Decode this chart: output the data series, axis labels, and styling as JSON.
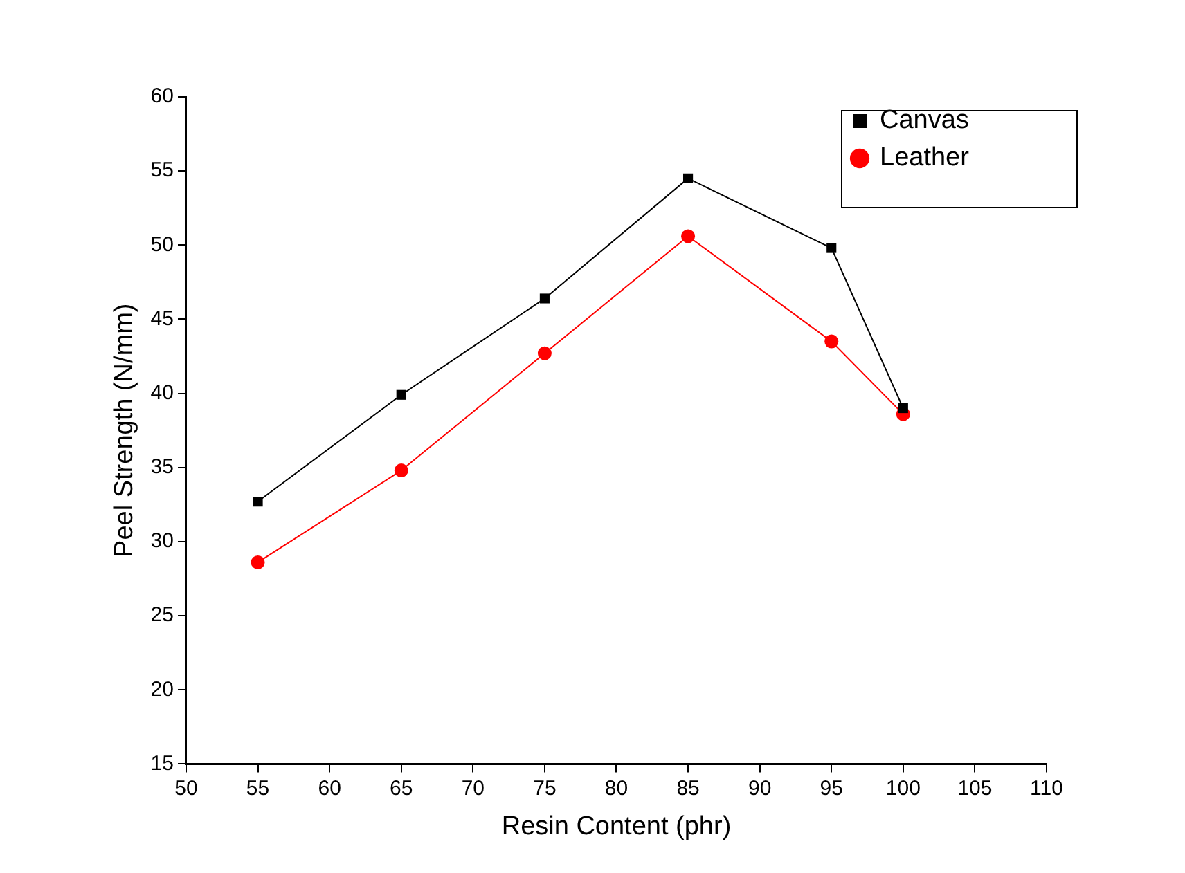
{
  "chart_data": {
    "type": "line",
    "xlabel": "Resin Content (phr)",
    "ylabel": "Peel Strength (N/mm)",
    "x": [
      55,
      65,
      75,
      85,
      95,
      100
    ],
    "series": [
      {
        "name": "Canvas",
        "color": "#000000",
        "marker": "square",
        "values": [
          32.7,
          39.9,
          46.4,
          54.5,
          49.8,
          39.0
        ]
      },
      {
        "name": "Leather",
        "color": "#ff0000",
        "marker": "circle",
        "values": [
          28.6,
          34.8,
          42.7,
          50.6,
          43.5,
          38.6
        ]
      }
    ],
    "xlim": [
      50,
      110
    ],
    "xticks": [
      50,
      55,
      60,
      65,
      70,
      75,
      80,
      85,
      90,
      95,
      100,
      105,
      110
    ],
    "ylim": [
      15,
      60
    ],
    "yticks": [
      15,
      20,
      25,
      30,
      35,
      40,
      45,
      50,
      55,
      60
    ],
    "grid": false,
    "legend": "top right",
    "line_style": "solid"
  }
}
